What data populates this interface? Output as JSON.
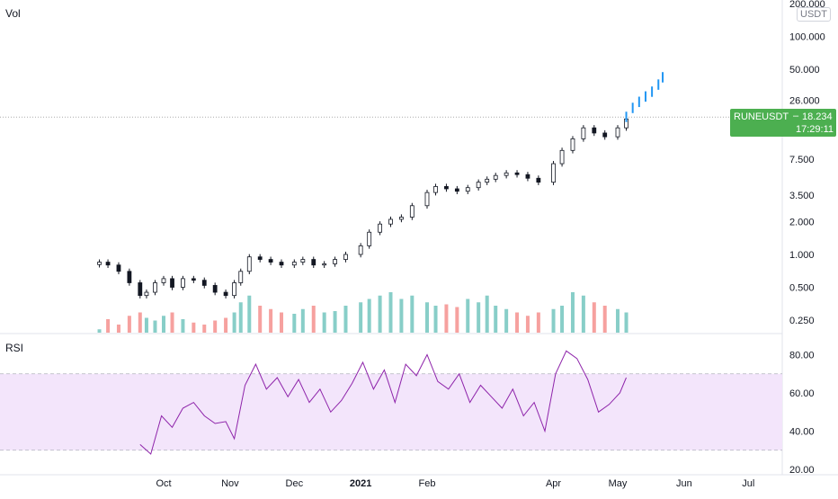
{
  "main_panel": {
    "label": "Vol",
    "currency_badge": "USDT",
    "last_price": {
      "symbol": "RUNEUSDT",
      "value": "18.234",
      "countdown": "17:29:11",
      "color": "#4caf50"
    }
  },
  "rsi_panel": {
    "label": "RSI",
    "line_color": "#8e24aa",
    "band_fill": "#f3e5fb",
    "band_range": [
      30,
      70
    ]
  },
  "colors": {
    "up": "#26a69a",
    "down": "#ef5350",
    "candle_up": "#131722",
    "candle_down": "#131722",
    "forecast": "#2196f3",
    "grid_text": "#131722"
  },
  "chart_data": [
    {
      "type": "candlestick",
      "title": "",
      "y_scale": "log",
      "y_ticks": [
        "0.250",
        "0.500",
        "1.000",
        "2.000",
        "3.500",
        "7.500",
        "26.000",
        "50.000",
        "100.000",
        "200.000"
      ],
      "x_ticks": [
        "Oct",
        "Nov",
        "Dec",
        "2021",
        "Feb",
        "Apr",
        "May",
        "Jun",
        "Jul"
      ],
      "series": [
        {
          "name": "price_close",
          "dates": [
            "2020-09-01",
            "2020-09-05",
            "2020-09-10",
            "2020-09-15",
            "2020-09-20",
            "2020-09-23",
            "2020-09-27",
            "2020-10-01",
            "2020-10-05",
            "2020-10-10",
            "2020-10-15",
            "2020-10-20",
            "2020-10-25",
            "2020-10-30",
            "2020-11-03",
            "2020-11-06",
            "2020-11-10",
            "2020-11-15",
            "2020-11-20",
            "2020-11-25",
            "2020-12-01",
            "2020-12-05",
            "2020-12-10",
            "2020-12-15",
            "2020-12-20",
            "2020-12-25",
            "2021-01-01",
            "2021-01-05",
            "2021-01-10",
            "2021-01-15",
            "2021-01-20",
            "2021-01-25",
            "2021-02-01",
            "2021-02-05",
            "2021-02-10",
            "2021-02-15",
            "2021-02-20",
            "2021-02-25",
            "2021-03-01",
            "2021-03-05",
            "2021-03-10",
            "2021-03-15",
            "2021-03-20",
            "2021-03-25",
            "2021-04-01",
            "2021-04-05",
            "2021-04-10",
            "2021-04-15",
            "2021-04-20",
            "2021-04-25",
            "2021-05-01",
            "2021-05-05"
          ],
          "values": [
            0.85,
            0.8,
            0.7,
            0.55,
            0.42,
            0.45,
            0.55,
            0.6,
            0.5,
            0.6,
            0.58,
            0.52,
            0.45,
            0.42,
            0.55,
            0.7,
            0.95,
            0.9,
            0.85,
            0.8,
            0.85,
            0.9,
            0.8,
            0.82,
            0.9,
            1.0,
            1.2,
            1.6,
            1.9,
            2.1,
            2.2,
            2.8,
            3.7,
            4.2,
            4.0,
            3.8,
            4.1,
            4.6,
            4.9,
            5.3,
            5.6,
            5.4,
            5.0,
            4.6,
            6.8,
            9.0,
            11.5,
            14.5,
            13.0,
            12.0,
            14.5,
            17.5
          ]
        },
        {
          "name": "forecast",
          "dates": [
            "2021-05-05",
            "2021-05-08",
            "2021-05-11",
            "2021-05-14",
            "2021-05-17",
            "2021-05-20",
            "2021-05-22"
          ],
          "values": [
            18.2,
            22.0,
            25.0,
            28.0,
            31.0,
            36.0,
            42.0
          ]
        },
        {
          "name": "volume",
          "values": [
            0.05,
            0.2,
            0.12,
            0.25,
            0.3,
            0.22,
            0.18,
            0.25,
            0.3,
            0.2,
            0.15,
            0.12,
            0.18,
            0.22,
            0.3,
            0.45,
            0.55,
            0.4,
            0.35,
            0.3,
            0.28,
            0.35,
            0.4,
            0.3,
            0.32,
            0.4,
            0.45,
            0.5,
            0.55,
            0.6,
            0.5,
            0.55,
            0.45,
            0.4,
            0.42,
            0.38,
            0.5,
            0.45,
            0.55,
            0.4,
            0.35,
            0.3,
            0.25,
            0.3,
            0.35,
            0.4,
            0.6,
            0.55,
            0.45,
            0.4,
            0.35,
            0.3
          ]
        }
      ]
    },
    {
      "type": "line",
      "title": "",
      "y_ticks": [
        "20.00",
        "40.00",
        "60.00",
        "80.00"
      ],
      "ylim": [
        20,
        85
      ],
      "series": [
        {
          "name": "RSI",
          "dates": [
            "2020-09-20",
            "2020-09-25",
            "2020-09-30",
            "2020-10-05",
            "2020-10-10",
            "2020-10-15",
            "2020-10-20",
            "2020-10-25",
            "2020-10-30",
            "2020-11-03",
            "2020-11-08",
            "2020-11-13",
            "2020-11-18",
            "2020-11-23",
            "2020-11-28",
            "2020-12-03",
            "2020-12-08",
            "2020-12-13",
            "2020-12-18",
            "2020-12-23",
            "2020-12-28",
            "2021-01-02",
            "2021-01-07",
            "2021-01-12",
            "2021-01-17",
            "2021-01-22",
            "2021-01-27",
            "2021-02-01",
            "2021-02-06",
            "2021-02-11",
            "2021-02-16",
            "2021-02-21",
            "2021-02-26",
            "2021-03-03",
            "2021-03-08",
            "2021-03-13",
            "2021-03-18",
            "2021-03-23",
            "2021-03-28",
            "2021-04-02",
            "2021-04-07",
            "2021-04-12",
            "2021-04-17",
            "2021-04-22",
            "2021-04-27",
            "2021-05-02",
            "2021-05-05"
          ],
          "values": [
            33,
            28,
            48,
            42,
            52,
            55,
            48,
            44,
            45,
            36,
            64,
            75,
            62,
            68,
            58,
            67,
            55,
            62,
            50,
            56,
            65,
            76,
            62,
            72,
            55,
            75,
            69,
            80,
            66,
            62,
            70,
            55,
            64,
            58,
            52,
            62,
            48,
            55,
            40,
            70,
            82,
            78,
            67,
            50,
            54,
            60,
            68
          ]
        }
      ]
    }
  ]
}
